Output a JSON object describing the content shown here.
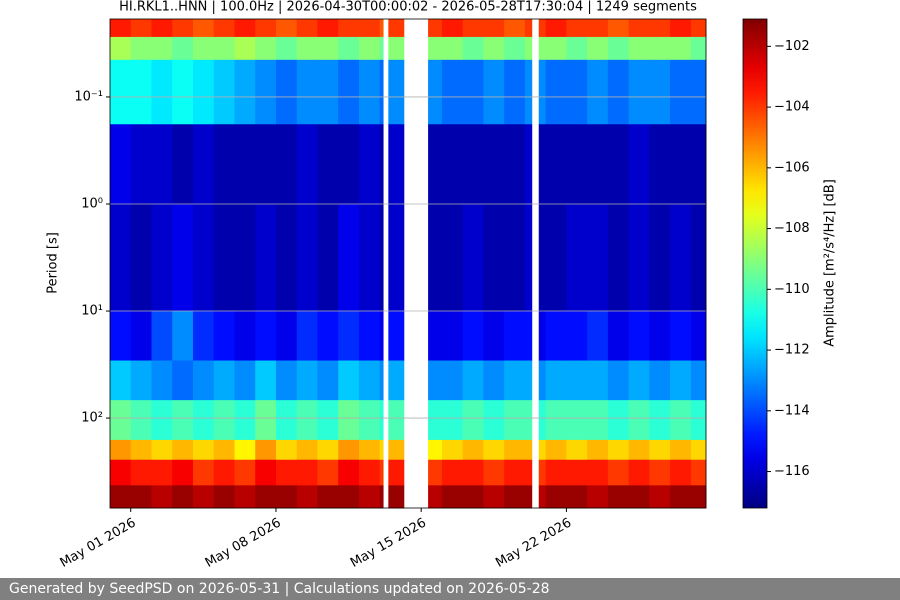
{
  "chart_data": {
    "type": "heatmap",
    "title": "HI.RKL1..HNN | 100.0Hz | 2026-04-30T00:00:02 - 2026-05-28T17:30:04 | 1249 segments",
    "ylabel": "Period [s]",
    "colorbar_label": "Amplitude [m²/s⁴/Hz] [dB]",
    "colormap": "jet",
    "yscale": "log",
    "yinvert": true,
    "grid": true,
    "xlim": [
      "2026-04-30T00:00:02",
      "2026-05-28T17:30:04"
    ],
    "xticks": [
      {
        "value": "2026-05-01",
        "label": "May 01 2026"
      },
      {
        "value": "2026-05-08",
        "label": "May 08 2026"
      },
      {
        "value": "2026-05-15",
        "label": "May 15 2026"
      },
      {
        "value": "2026-05-22",
        "label": "May 22 2026"
      }
    ],
    "ylim": [
      0.0187,
      692
    ],
    "yticks": [
      {
        "value": 0.1,
        "label": "10⁻¹"
      },
      {
        "value": 1,
        "label": "10⁰"
      },
      {
        "value": 10,
        "label": "10¹"
      },
      {
        "value": 100,
        "label": "10²"
      }
    ],
    "clim": [
      -117.2,
      -101.1
    ],
    "cticks": [
      {
        "value": -102,
        "label": "−102"
      },
      {
        "value": -104,
        "label": "−104"
      },
      {
        "value": -106,
        "label": "−106"
      },
      {
        "value": -108,
        "label": "−108"
      },
      {
        "value": -110,
        "label": "−110"
      },
      {
        "value": -112,
        "label": "−112"
      },
      {
        "value": -114,
        "label": "−114"
      },
      {
        "value": -116,
        "label": "−116"
      }
    ],
    "y_edges": [
      0.0187,
      0.0275,
      0.045,
      0.18,
      1,
      10,
      29,
      68,
      160,
      245,
      425,
      692
    ],
    "x": [
      "2026-04-30T00:00:02",
      "2026-05-01",
      "2026-05-02",
      "2026-05-03",
      "2026-05-04",
      "2026-05-05",
      "2026-05-06",
      "2026-05-07",
      "2026-05-08",
      "2026-05-09",
      "2026-05-10",
      "2026-05-11",
      "2026-05-12",
      "2026-05-13",
      "2026-05-13T04:00",
      "2026-05-13T10:00",
      "2026-05-14T04:00",
      "2026-05-15T08:00",
      "2026-05-16",
      "2026-05-17",
      "2026-05-18",
      "2026-05-19",
      "2026-05-20",
      "2026-05-20T08:00",
      "2026-05-20T16:00",
      "2026-05-21",
      "2026-05-22",
      "2026-05-23",
      "2026-05-24",
      "2026-05-25",
      "2026-05-26",
      "2026-05-27",
      "2026-05-28"
    ],
    "values": [
      [
        -103.5,
        -108.5,
        -111,
        -115.5,
        -116,
        -115,
        -112,
        -109.5,
        -105.5,
        -103,
        -101.5
      ],
      [
        -104,
        -109,
        -111,
        -116,
        -116.5,
        -115.5,
        -112.5,
        -110,
        -106,
        -103.5,
        -101.5
      ],
      [
        -103.5,
        -109,
        -111.5,
        -116,
        -116,
        -114,
        -113,
        -110.5,
        -106.5,
        -103.5,
        -102
      ],
      [
        -104,
        -109.5,
        -111,
        -116.5,
        -115.5,
        -113,
        -113.5,
        -110,
        -106,
        -103,
        -101.5
      ],
      [
        -104.5,
        -109,
        -111.5,
        -116,
        -116,
        -114.5,
        -113,
        -110.5,
        -106.5,
        -104,
        -102
      ],
      [
        -104,
        -109,
        -112,
        -116.5,
        -116.5,
        -115,
        -112.5,
        -110,
        -106,
        -103.5,
        -101.5
      ],
      [
        -103.5,
        -108.5,
        -112.5,
        -116.5,
        -116.5,
        -115.5,
        -113,
        -110.5,
        -107,
        -104,
        -102
      ],
      [
        -104,
        -109,
        -113,
        -116.5,
        -116,
        -115,
        -112,
        -109.5,
        -105.5,
        -103,
        -101.5
      ],
      [
        -104.5,
        -109.5,
        -113.5,
        -116.5,
        -116.5,
        -115.5,
        -113,
        -110.5,
        -106.5,
        -103.5,
        -101.5
      ],
      [
        -104,
        -109,
        -113,
        -116,
        -116,
        -114.5,
        -112.5,
        -110,
        -106,
        -103.5,
        -102
      ],
      [
        -103.5,
        -109,
        -113,
        -116.5,
        -116.5,
        -115,
        -113,
        -110.5,
        -106.5,
        -104,
        -101.5
      ],
      [
        -104,
        -109.5,
        -113.5,
        -116.5,
        -115.5,
        -114.5,
        -112,
        -109.5,
        -105.5,
        -103,
        -101.5
      ],
      [
        -104,
        -109,
        -113,
        -116,
        -116,
        -115,
        -112.5,
        -110,
        -106,
        -103.5,
        -102
      ],
      [
        -104.5,
        -109.5,
        -113.5,
        -116.5,
        -116.5,
        -115.5,
        -113,
        -110.5,
        -106.5,
        -104,
        -101.5
      ],
      null,
      [
        -104,
        -109,
        -113,
        -116,
        -116,
        -115,
        -112.5,
        -110,
        -106,
        -103.5,
        -101.5
      ],
      null,
      [
        -104,
        -109,
        -113,
        -116.5,
        -116.5,
        -115.5,
        -113,
        -110.5,
        -107,
        -104,
        -102
      ],
      [
        -103.5,
        -109,
        -113.5,
        -116.5,
        -116.5,
        -115.5,
        -113,
        -110.5,
        -106.5,
        -103.5,
        -101.5
      ],
      [
        -104,
        -109.5,
        -113.5,
        -116.5,
        -116,
        -115,
        -112.5,
        -110,
        -106,
        -103.5,
        -101.5
      ],
      [
        -104,
        -109,
        -113,
        -116.5,
        -116.5,
        -115.5,
        -113,
        -110.5,
        -106.5,
        -104,
        -102
      ],
      [
        -104.5,
        -109.5,
        -113.5,
        -116.5,
        -116.5,
        -115,
        -112.5,
        -110,
        -106,
        -103.5,
        -101.5
      ],
      [
        -104,
        -109,
        -113,
        -116,
        -116,
        -115,
        -112.5,
        -110,
        -106,
        -103.5,
        -101.5
      ],
      null,
      [
        -104,
        -109,
        -113,
        -116.5,
        -116.5,
        -115.5,
        -113,
        -110.5,
        -106.5,
        -104,
        -102
      ],
      [
        -103.5,
        -109,
        -113.5,
        -116.5,
        -116.5,
        -115,
        -112.5,
        -110,
        -106,
        -103.5,
        -101.5
      ],
      [
        -104,
        -109.5,
        -113.5,
        -116.5,
        -116,
        -115,
        -112.5,
        -110,
        -106.5,
        -103.5,
        -101.5
      ],
      [
        -104,
        -109,
        -113,
        -116.5,
        -116,
        -114.5,
        -112.5,
        -110,
        -106,
        -103.5,
        -102
      ],
      [
        -104.5,
        -109.5,
        -113.5,
        -116.5,
        -116.5,
        -115.5,
        -113,
        -110.5,
        -106.5,
        -104,
        -101.5
      ],
      [
        -104,
        -109,
        -113,
        -116,
        -116,
        -115,
        -112.5,
        -110,
        -106,
        -103.5,
        -101.5
      ],
      [
        -104,
        -109,
        -113,
        -116.5,
        -116.5,
        -115.5,
        -113,
        -110.5,
        -106.5,
        -104,
        -102
      ],
      [
        -103.5,
        -109,
        -113.5,
        -116.5,
        -116,
        -115,
        -112.5,
        -110,
        -106,
        -103.5,
        -101.5
      ],
      [
        -104,
        -109.5,
        -113.5,
        -116.5,
        -116.5,
        -115.5,
        -113,
        -110.5,
        -106.5,
        -104,
        -101.5
      ]
    ]
  },
  "footer": "Generated by SeedPSD on 2026-05-31 | Calculations updated on 2026-05-28"
}
